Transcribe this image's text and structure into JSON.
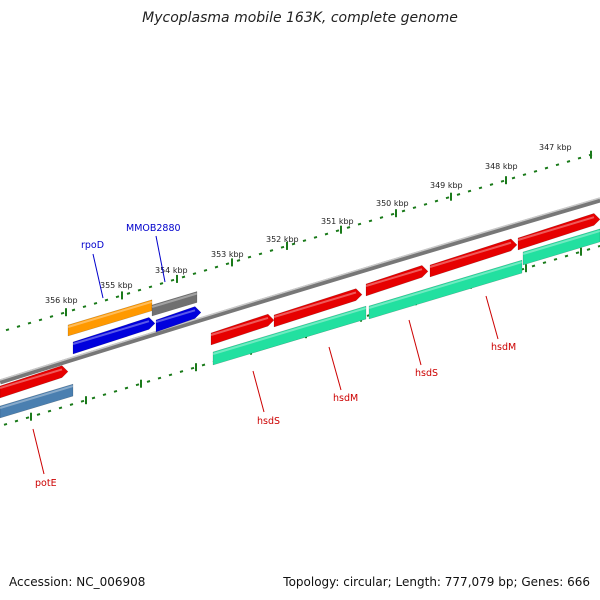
{
  "title": "Mycoplasma mobile 163K, complete genome",
  "footer": {
    "accession": "Accession: NC_006908",
    "summary": "Topology: circular; Length: 777,079 bp; Genes: 666"
  },
  "colors": {
    "backbone": "#8a8a8a",
    "tick": "#1a7a1a",
    "red_gene": "#e60000",
    "green_gene": "#22e0a0",
    "orange_gene": "#ff9900",
    "blue_gene": "#0000dd",
    "gray_gene": "#707070",
    "steel_gene": "#4a7fb0",
    "label_red": "#cc0000",
    "label_blue": "#0000cc"
  },
  "scale_labels": [
    "347 kbp",
    "348 kbp",
    "349 kbp",
    "350 kbp",
    "351 kbp",
    "352 kbp",
    "353 kbp",
    "354 kbp",
    "355 kbp",
    "356 kbp"
  ],
  "gene_labels": [
    "hsdM",
    "hsdS",
    "hsdM",
    "hsdS",
    "potE",
    "rpoD",
    "MMOB2880"
  ]
}
